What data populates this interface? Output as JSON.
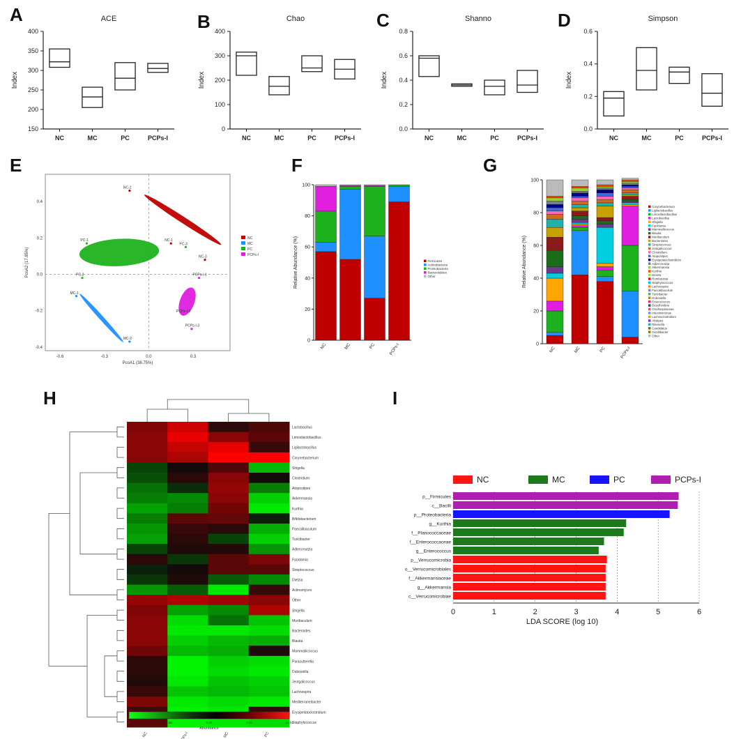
{
  "panel_labels": {
    "A": "A",
    "B": "B",
    "C": "C",
    "D": "D",
    "E": "E",
    "F": "F",
    "G": "G",
    "H": "H",
    "I": "I"
  },
  "chart_data": [
    {
      "id": "A",
      "type": "box",
      "title": "ACE",
      "ylabel": "Index",
      "categories": [
        "NC",
        "MC",
        "PC",
        "PCPs-I"
      ],
      "ylim": [
        150,
        400
      ],
      "yticks": [
        150,
        200,
        250,
        300,
        350,
        400
      ],
      "boxes": [
        [
          308,
          322,
          355
        ],
        [
          205,
          232,
          257
        ],
        [
          250,
          280,
          320
        ],
        [
          295,
          305,
          318
        ]
      ]
    },
    {
      "id": "B",
      "type": "box",
      "title": "Chao",
      "ylabel": "Index",
      "categories": [
        "NC",
        "MC",
        "PC",
        "PCPs-I"
      ],
      "ylim": [
        0,
        400
      ],
      "yticks": [
        0,
        100,
        200,
        300,
        400
      ],
      "boxes": [
        [
          220,
          300,
          315
        ],
        [
          140,
          175,
          215
        ],
        [
          235,
          250,
          300
        ],
        [
          205,
          245,
          285
        ]
      ]
    },
    {
      "id": "C",
      "type": "box",
      "title": "Shanno",
      "ylabel": "Index",
      "categories": [
        "NC",
        "MC",
        "PC",
        "PCPs-I"
      ],
      "ylim": [
        0.0,
        0.8
      ],
      "yticks": [
        "0.0",
        "0.2",
        "0.4",
        "0.6",
        "0.8"
      ],
      "boxes": [
        [
          0.43,
          0.58,
          0.6
        ],
        [
          0.35,
          0.36,
          0.37
        ],
        [
          0.28,
          0.35,
          0.4
        ],
        [
          0.3,
          0.36,
          0.48
        ]
      ]
    },
    {
      "id": "D",
      "type": "box",
      "title": "Simpson",
      "ylabel": "Index",
      "categories": [
        "NC",
        "MC",
        "PC",
        "PCPs-I"
      ],
      "ylim": [
        0.0,
        0.6
      ],
      "yticks": [
        "0.0",
        "0.2",
        "0.4",
        "0.6"
      ],
      "boxes": [
        [
          0.08,
          0.19,
          0.23
        ],
        [
          0.24,
          0.36,
          0.5
        ],
        [
          0.28,
          0.35,
          0.38
        ],
        [
          0.14,
          0.22,
          0.34
        ]
      ]
    },
    {
      "id": "E",
      "type": "scatter",
      "xlabel": "PcoA1 (38.75%)",
      "ylabel": "PcoA2 (17.85%)",
      "xlim": [
        -0.7,
        0.55
      ],
      "ylim": [
        -0.42,
        0.55
      ],
      "xticks": [
        "-0.6",
        "-0.3",
        "0.0",
        "0.3"
      ],
      "yticks": [
        "-0.4",
        "-0.2",
        "0.0",
        "0.2",
        "0.4"
      ],
      "legend": [
        "NC",
        "MC",
        "PC",
        "PCPs-I"
      ],
      "colors": {
        "NC": "#c00000",
        "MC": "#1e90ff",
        "PC": "#1db21d",
        "PCPs-I": "#e01ee0"
      },
      "points": [
        {
          "label": "NC-2",
          "group": "NC",
          "x": -0.13,
          "y": 0.46
        },
        {
          "label": "NC-1",
          "group": "NC",
          "x": 0.15,
          "y": 0.17
        },
        {
          "label": "NC-3",
          "group": "NC",
          "x": 0.38,
          "y": 0.08
        },
        {
          "label": "MC-1",
          "group": "MC",
          "x": -0.49,
          "y": -0.12
        },
        {
          "label": "MC-2",
          "group": "MC",
          "x": -0.13,
          "y": -0.37
        },
        {
          "label": "PC-1",
          "group": "PC",
          "x": -0.42,
          "y": 0.17
        },
        {
          "label": "PC-2",
          "group": "PC",
          "x": -0.45,
          "y": -0.02
        },
        {
          "label": "PC-3",
          "group": "PC",
          "x": 0.25,
          "y": 0.15
        },
        {
          "label": "PCPs-I-1",
          "group": "PCPs-I",
          "x": 0.34,
          "y": -0.02
        },
        {
          "label": "PCPs-I-2",
          "group": "PCPs-I",
          "x": 0.23,
          "y": -0.22
        },
        {
          "label": "PCPs-I-3",
          "group": "PCPs-I",
          "x": 0.29,
          "y": -0.3
        }
      ]
    },
    {
      "id": "F",
      "type": "stacked-bar",
      "ylabel": "Relative Abundance (%)",
      "categories": [
        "NC",
        "MC",
        "PC",
        "PCPs-I"
      ],
      "ylim": [
        0,
        100
      ],
      "yticks": [
        0,
        20,
        40,
        60,
        80,
        100
      ],
      "series": [
        {
          "name": "Firmicutes",
          "color": "#c00000",
          "values": [
            57,
            52,
            27,
            89
          ]
        },
        {
          "name": "Actinobacteria",
          "color": "#1e90ff",
          "values": [
            6,
            45,
            40,
            10
          ]
        },
        {
          "name": "Proteobacteria",
          "color": "#1db21d",
          "values": [
            20,
            2,
            32,
            1
          ]
        },
        {
          "name": "Bacteroidetes",
          "color": "#e01ee0",
          "values": [
            16,
            0.5,
            0.5,
            0
          ]
        },
        {
          "name": "Other",
          "color": "#bbbbbb",
          "values": [
            1,
            0.5,
            0.5,
            0
          ]
        }
      ]
    },
    {
      "id": "G",
      "type": "stacked-bar",
      "ylabel": "Relative Abundance (%)",
      "categories": [
        "NC",
        "MC",
        "PC",
        "PCPs-I"
      ],
      "ylim": [
        0,
        100
      ],
      "yticks": [
        0,
        20,
        40,
        60,
        80,
        100
      ],
      "series": [
        {
          "name": "Corynebacterium",
          "color": "#c00000",
          "values": [
            5,
            42,
            38,
            4
          ]
        },
        {
          "name": "Ligilactobacillus",
          "color": "#1e90ff",
          "values": [
            2,
            27,
            3,
            28
          ]
        },
        {
          "name": "Limosilactobacillus",
          "color": "#1db21d",
          "values": [
            13,
            2,
            4,
            28
          ]
        },
        {
          "name": "Lactobacillus",
          "color": "#e01ee0",
          "values": [
            6,
            1,
            2,
            24
          ]
        },
        {
          "name": "Shigella",
          "color": "#ffa500",
          "values": [
            14,
            1,
            2,
            1
          ]
        },
        {
          "name": "Facklamia",
          "color": "#00cfe0",
          "values": [
            3,
            1,
            22,
            1
          ]
        },
        {
          "name": "Mammaliicoccus",
          "color": "#6b3a8c",
          "values": [
            4,
            2,
            2,
            1
          ]
        },
        {
          "name": "Blautia",
          "color": "#1a6b1a",
          "values": [
            10,
            2,
            2,
            1
          ]
        },
        {
          "name": "Muribaculum",
          "color": "#8b1a1a",
          "values": [
            8,
            3,
            2,
            2
          ]
        },
        {
          "name": "Bacteroides",
          "color": "#c8a000",
          "values": [
            6,
            2,
            7,
            1
          ]
        },
        {
          "name": "Streptococcus",
          "color": "#20b2aa",
          "values": [
            5,
            2,
            2,
            1
          ]
        },
        {
          "name": "Jeotgalicoccus",
          "color": "#d2691e",
          "values": [
            3,
            2,
            2,
            2
          ]
        },
        {
          "name": "Clostridium",
          "color": "#ff69b4",
          "values": [
            2,
            2,
            2,
            1
          ]
        },
        {
          "name": "Atopostipes",
          "color": "#4169e1",
          "values": [
            2,
            1,
            2,
            1
          ]
        },
        {
          "name": "Erysipelatoclostridium",
          "color": "#00008b",
          "values": [
            2,
            2,
            2,
            1
          ]
        },
        {
          "name": "Adlercreutzia",
          "color": "#708090",
          "values": [
            2,
            1,
            1,
            1
          ]
        },
        {
          "name": "Akkermansia",
          "color": "#9acd32",
          "values": [
            2,
            2,
            1,
            1
          ]
        },
        {
          "name": "Kurthia",
          "color": "#ff4500",
          "values": [
            1,
            1,
            1,
            1
          ]
        },
        {
          "name": "Other",
          "color": "#bbbbbb",
          "values": [
            10,
            4,
            3,
            1
          ]
        }
      ],
      "legend_extra": [
        "Dietzia",
        "Romboutsia",
        "Staphylococcus",
        "Lachnospira",
        "Faecalibaculum",
        "Turicibacter",
        "Dubosiella",
        "Enterococcus",
        "Desulfovibrio",
        "Oscillospiraceae",
        "Intestinimonas",
        "Lachnoclostridium",
        "Alistipes",
        "Rikenella",
        "Candidatus",
        "Oscillibacter"
      ]
    },
    {
      "id": "H",
      "type": "heatmap",
      "columns": [
        "NC",
        "PCPs-I",
        "MC",
        "PC"
      ],
      "rows": [
        "Lactobacillus",
        "Limosilactobacillus",
        "Ligilactobacillus",
        "Corynebacterium",
        "Shigella",
        "Clostridium",
        "Atopostipes",
        "Akkermansia",
        "Kurthia",
        "Bifidobacterium",
        "Faecalibaculum",
        "Turicibacter",
        "Adlercreutzia",
        "Facklamia",
        "Streptococcus",
        "Dietzia",
        "Actinomyces",
        "Other",
        "Shigella",
        "Muribaculum",
        "Bacteroides",
        "Blautia",
        "Mammaliicoccus",
        "Parasutterella",
        "Dubosiella",
        "Jeotgalicoccus",
        "Lachnospira",
        "Mediterraneibacter",
        "Erysipelatoclostridium",
        "Staphylococcus"
      ],
      "values": [
        [
          0.9,
          1.6,
          0.2,
          0.5
        ],
        [
          1.0,
          1.8,
          1.0,
          0.6
        ],
        [
          1.0,
          1.5,
          1.8,
          0.3
        ],
        [
          1.0,
          1.3,
          2.0,
          2.0
        ],
        [
          -0.4,
          0.0,
          0.5,
          -1.4
        ],
        [
          -0.5,
          0.2,
          1.0,
          0.0
        ],
        [
          -0.8,
          -0.2,
          1.1,
          -0.9
        ],
        [
          -0.9,
          -1.0,
          1.0,
          -1.6
        ],
        [
          -1.2,
          -0.9,
          0.8,
          -1.8
        ],
        [
          -0.9,
          0.6,
          0.7,
          -0.1
        ],
        [
          -1.1,
          0.3,
          0.2,
          -1.3
        ],
        [
          -1.2,
          0.2,
          -0.4,
          -1.6
        ],
        [
          -0.4,
          0.1,
          0.1,
          -1.1
        ],
        [
          0.2,
          -0.3,
          0.6,
          0.9
        ],
        [
          -0.1,
          0.0,
          0.6,
          0.6
        ],
        [
          -0.3,
          0.1,
          -0.6,
          -1.0
        ],
        [
          -1.1,
          -0.6,
          -1.8,
          0.3
        ],
        [
          1.1,
          1.3,
          1.2,
          1.0
        ],
        [
          0.9,
          -1.2,
          -1.0,
          1.3
        ],
        [
          1.0,
          -1.7,
          -0.8,
          -1.5
        ],
        [
          1.0,
          -1.8,
          -1.8,
          -1.7
        ],
        [
          1.0,
          -1.6,
          -1.4,
          -1.3
        ],
        [
          0.8,
          -1.4,
          -1.3,
          0.1
        ],
        [
          0.2,
          -1.9,
          -1.6,
          -1.7
        ],
        [
          0.2,
          -1.9,
          -1.7,
          -1.8
        ],
        [
          0.1,
          -1.8,
          -1.5,
          -1.6
        ],
        [
          0.3,
          -1.5,
          -1.4,
          -1.5
        ],
        [
          0.9,
          -1.8,
          -1.7,
          -1.8
        ],
        [
          0.4,
          -1.9,
          -1.8,
          0.3
        ],
        [
          0.6,
          -1.9,
          -1.8,
          -1.7
        ]
      ],
      "colorbar": {
        "label": "Abundance",
        "ticks": [
          "0",
          "0.00",
          "0.40",
          "0.80",
          "41.04"
        ]
      }
    },
    {
      "id": "I",
      "type": "hbar",
      "xlabel": "LDA SCORE (log 10)",
      "xlim": [
        0,
        6
      ],
      "xticks": [
        "0",
        "1",
        "2",
        "3",
        "4",
        "5",
        "6"
      ],
      "legend": [
        {
          "name": "NC",
          "color": "#ff1414"
        },
        {
          "name": "MC",
          "color": "#1c7a1c"
        },
        {
          "name": "PC",
          "color": "#1414ff"
        },
        {
          "name": "PCPs-I",
          "color": "#b01eb0"
        }
      ],
      "bars": [
        {
          "label": "p__Firmicutes",
          "group": "PCPs-I",
          "value": 5.5
        },
        {
          "label": "c__Bacilli",
          "group": "PCPs-I",
          "value": 5.48
        },
        {
          "label": "p__Proteobacteria",
          "group": "PC",
          "value": 5.28
        },
        {
          "label": "g__Kurthia",
          "group": "MC",
          "value": 4.22
        },
        {
          "label": "f__Planococcaceae",
          "group": "MC",
          "value": 4.16
        },
        {
          "label": "f__Enterococcaceae",
          "group": "MC",
          "value": 3.68
        },
        {
          "label": "g__Enterococcus",
          "group": "MC",
          "value": 3.55
        },
        {
          "label": "p__Verrucomicrobia",
          "group": "NC",
          "value": 3.75
        },
        {
          "label": "o__Verrucomicrobiales",
          "group": "NC",
          "value": 3.72
        },
        {
          "label": "f__Akkermansiaceae",
          "group": "NC",
          "value": 3.72
        },
        {
          "label": "g__Akkermansia",
          "group": "NC",
          "value": 3.72
        },
        {
          "label": "c__Verrucomicrobiae",
          "group": "NC",
          "value": 3.72
        }
      ]
    }
  ]
}
